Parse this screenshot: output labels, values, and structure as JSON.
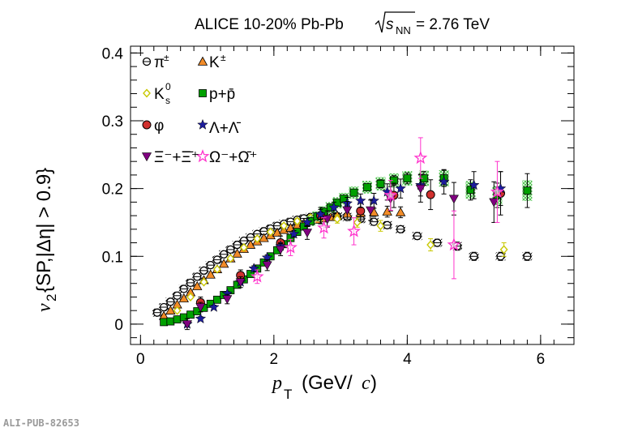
{
  "chart_data": {
    "type": "scatter",
    "title_prefix": "ALICE 10-20% Pb-Pb",
    "title_sqrt": "s",
    "title_sub": "NN",
    "title_suffix": "= 2.76 TeV",
    "xlabel_p": "p",
    "xlabel_sub": "T",
    "xlabel_rest": "(GeV/",
    "xlabel_c": "c",
    "xlabel_close": ")",
    "ylabel_v": "v",
    "ylabel_sub": "2",
    "ylabel_rest": "{SP,|Δη| > 0.9}",
    "xlim": [
      -0.15,
      6.5
    ],
    "ylim": [
      -0.03,
      0.41
    ],
    "xticks": [
      {
        "v": 0,
        "label": "0"
      },
      {
        "v": 2,
        "label": "2"
      },
      {
        "v": 4,
        "label": "4"
      },
      {
        "v": 6,
        "label": "6"
      }
    ],
    "yticks": [
      {
        "v": 0,
        "label": "0"
      },
      {
        "v": 0.1,
        "label": "0.1"
      },
      {
        "v": 0.2,
        "label": "0.2"
      },
      {
        "v": 0.3,
        "label": "0.3"
      },
      {
        "v": 0.4,
        "label": "0.4"
      }
    ],
    "legend": [
      "π±",
      "K±",
      "K0s",
      "p+p̄",
      "φ",
      "Λ+Λ̄",
      "Ξ⁻+Ξ̄⁺",
      "Ω⁻+Ω̄⁺"
    ],
    "series": [
      {
        "name": "pi",
        "label_main": "π",
        "label_sup": "±",
        "marker": "circle-open",
        "color": "#000000",
        "x": [
          0.25,
          0.35,
          0.45,
          0.55,
          0.65,
          0.75,
          0.85,
          0.95,
          1.05,
          1.15,
          1.25,
          1.35,
          1.45,
          1.55,
          1.65,
          1.75,
          1.85,
          1.95,
          2.05,
          2.15,
          2.25,
          2.35,
          2.45,
          2.55,
          2.65,
          2.75,
          2.85,
          2.95,
          3.1,
          3.3,
          3.5,
          3.7,
          3.9,
          4.15,
          4.45,
          4.75,
          5.0,
          5.4,
          5.8
        ],
        "y": [
          0.017,
          0.025,
          0.033,
          0.042,
          0.052,
          0.061,
          0.07,
          0.079,
          0.087,
          0.095,
          0.103,
          0.11,
          0.117,
          0.123,
          0.128,
          0.133,
          0.137,
          0.141,
          0.145,
          0.148,
          0.151,
          0.154,
          0.156,
          0.158,
          0.159,
          0.16,
          0.16,
          0.159,
          0.158,
          0.155,
          0.151,
          0.146,
          0.14,
          0.13,
          0.12,
          0.115,
          0.1,
          0.1,
          0.1
        ],
        "err": [
          0.002,
          0.002,
          0.002,
          0.002,
          0.002,
          0.002,
          0.002,
          0.002,
          0.002,
          0.002,
          0.002,
          0.002,
          0.002,
          0.002,
          0.002,
          0.002,
          0.002,
          0.002,
          0.002,
          0.002,
          0.002,
          0.002,
          0.002,
          0.002,
          0.002,
          0.002,
          0.002,
          0.002,
          0.003,
          0.003,
          0.003,
          0.003,
          0.004,
          0.005,
          0.005,
          0.006,
          0.006,
          0.006,
          0.006
        ]
      },
      {
        "name": "k",
        "label_main": "K",
        "label_sup": "±",
        "marker": "triangle",
        "color": "#f28c28",
        "x": [
          0.35,
          0.45,
          0.55,
          0.65,
          0.75,
          0.85,
          0.95,
          1.05,
          1.15,
          1.25,
          1.35,
          1.45,
          1.55,
          1.65,
          1.75,
          1.85,
          1.95,
          2.05,
          2.15,
          2.25,
          2.35,
          2.45,
          2.55,
          2.65,
          2.75,
          2.85,
          2.95,
          3.1,
          3.3,
          3.5,
          3.7,
          3.9
        ],
        "y": [
          0.012,
          0.02,
          0.029,
          0.038,
          0.047,
          0.056,
          0.065,
          0.073,
          0.081,
          0.089,
          0.097,
          0.104,
          0.111,
          0.117,
          0.122,
          0.127,
          0.131,
          0.135,
          0.139,
          0.142,
          0.146,
          0.149,
          0.152,
          0.154,
          0.156,
          0.158,
          0.16,
          0.163,
          0.164,
          0.165,
          0.166,
          0.165
        ],
        "err": [
          0.002,
          0.002,
          0.002,
          0.002,
          0.002,
          0.002,
          0.002,
          0.002,
          0.002,
          0.002,
          0.002,
          0.002,
          0.002,
          0.002,
          0.002,
          0.002,
          0.002,
          0.002,
          0.002,
          0.003,
          0.003,
          0.003,
          0.003,
          0.003,
          0.003,
          0.004,
          0.004,
          0.005,
          0.006,
          0.006,
          0.008,
          0.008
        ]
      },
      {
        "name": "k0s",
        "label_main": "K",
        "label_sup": "0",
        "label_sub": "s",
        "marker": "diamond-open",
        "color": "#c8c800",
        "x": [
          0.55,
          0.75,
          0.95,
          1.15,
          1.35,
          1.55,
          1.75,
          1.95,
          2.15,
          2.35,
          2.55,
          2.75,
          2.95,
          3.25,
          3.6,
          4.35,
          5.45
        ],
        "y": [
          0.02,
          0.04,
          0.062,
          0.081,
          0.097,
          0.113,
          0.126,
          0.136,
          0.145,
          0.152,
          0.157,
          0.16,
          0.155,
          0.15,
          0.145,
          0.117,
          0.11
        ],
        "err": [
          0.002,
          0.002,
          0.002,
          0.002,
          0.002,
          0.002,
          0.003,
          0.003,
          0.003,
          0.004,
          0.004,
          0.005,
          0.006,
          0.007,
          0.008,
          0.009,
          0.01
        ]
      },
      {
        "name": "proton",
        "label_main": "p+p̄",
        "marker": "square",
        "color": "#00a000",
        "x": [
          0.35,
          0.45,
          0.55,
          0.65,
          0.75,
          0.85,
          0.95,
          1.05,
          1.15,
          1.25,
          1.35,
          1.45,
          1.55,
          1.65,
          1.75,
          1.85,
          1.95,
          2.05,
          2.15,
          2.25,
          2.35,
          2.45,
          2.55,
          2.65,
          2.75,
          2.85,
          2.95,
          3.05,
          3.2,
          3.4,
          3.6,
          3.8,
          4.0,
          4.25,
          4.55,
          4.95,
          5.35,
          5.8
        ],
        "y": [
          0.003,
          0.004,
          0.007,
          0.01,
          0.014,
          0.019,
          0.024,
          0.03,
          0.036,
          0.043,
          0.05,
          0.058,
          0.066,
          0.074,
          0.082,
          0.091,
          0.1,
          0.109,
          0.118,
          0.127,
          0.136,
          0.144,
          0.152,
          0.159,
          0.166,
          0.172,
          0.179,
          0.185,
          0.194,
          0.202,
          0.207,
          0.212,
          0.215,
          0.215,
          0.215,
          0.198,
          0.19,
          0.197
        ],
        "err": [
          0.002,
          0.002,
          0.002,
          0.002,
          0.002,
          0.002,
          0.002,
          0.002,
          0.002,
          0.002,
          0.002,
          0.002,
          0.002,
          0.002,
          0.002,
          0.002,
          0.002,
          0.002,
          0.002,
          0.002,
          0.002,
          0.002,
          0.002,
          0.002,
          0.002,
          0.003,
          0.003,
          0.003,
          0.004,
          0.005,
          0.006,
          0.007,
          0.008,
          0.01,
          0.012,
          0.015,
          0.018,
          0.025
        ]
      },
      {
        "name": "phi",
        "label_main": "φ",
        "marker": "circle",
        "color": "#d0302e",
        "x": [
          0.9,
          1.5,
          2.1,
          2.7,
          3.3,
          3.8,
          4.35,
          5.4
        ],
        "y": [
          0.032,
          0.072,
          0.12,
          0.16,
          0.167,
          0.19,
          0.191,
          0.193
        ],
        "err": [
          0.008,
          0.008,
          0.01,
          0.012,
          0.015,
          0.018,
          0.022,
          0.032
        ]
      },
      {
        "name": "lambda",
        "label_main": "Λ+Λ̄",
        "marker": "star",
        "color": "#1c1c9c",
        "x": [
          0.7,
          0.9,
          1.1,
          1.3,
          1.5,
          1.7,
          1.9,
          2.1,
          2.3,
          2.5,
          2.7,
          2.9,
          3.1,
          3.3,
          3.5,
          3.7,
          3.9,
          4.2,
          4.55,
          5.0,
          5.4
        ],
        "y": [
          0.0,
          0.008,
          0.025,
          0.045,
          0.062,
          0.082,
          0.098,
          0.115,
          0.133,
          0.15,
          0.162,
          0.172,
          0.178,
          0.182,
          0.182,
          0.195,
          0.2,
          0.205,
          0.21,
          0.205,
          0.2
        ],
        "err": [
          0.003,
          0.003,
          0.003,
          0.003,
          0.003,
          0.004,
          0.004,
          0.005,
          0.005,
          0.006,
          0.007,
          0.008,
          0.009,
          0.01,
          0.011,
          0.012,
          0.014,
          0.016,
          0.018,
          0.02,
          0.025
        ]
      },
      {
        "name": "xi",
        "label_main": "Ξ⁻+Ξ̄⁺",
        "marker": "triangle-down",
        "color": "#800080",
        "x": [
          0.7,
          0.9,
          1.3,
          1.5,
          1.9,
          2.1,
          2.5,
          2.8,
          3.1,
          3.45,
          3.75,
          4.2,
          4.7,
          5.3
        ],
        "y": [
          0.0,
          0.025,
          0.037,
          0.062,
          0.087,
          0.11,
          0.135,
          0.155,
          0.168,
          0.168,
          0.185,
          0.2,
          0.185,
          0.18
        ],
        "err": [
          0.008,
          0.007,
          0.007,
          0.008,
          0.008,
          0.009,
          0.01,
          0.012,
          0.013,
          0.015,
          0.018,
          0.02,
          0.024,
          0.03
        ]
      },
      {
        "name": "omega",
        "label_main": "Ω⁻+Ω̄⁺",
        "marker": "star-open",
        "color": "#ff33cc",
        "x": [
          1.75,
          2.25,
          2.75,
          3.2,
          3.75,
          4.2,
          4.7,
          5.35
        ],
        "y": [
          0.07,
          0.113,
          0.142,
          0.137,
          0.19,
          0.245,
          0.117,
          0.195
        ],
        "err": [
          0.01,
          0.012,
          0.015,
          0.02,
          0.022,
          0.03,
          0.05,
          0.045
        ]
      }
    ]
  },
  "footer": {
    "pub_id": "ALI-PUB-82653"
  }
}
